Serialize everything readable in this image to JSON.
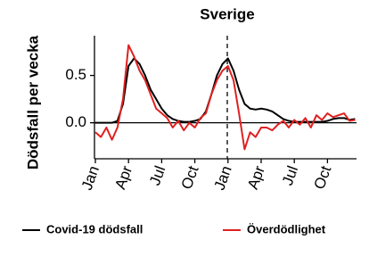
{
  "chart_data": {
    "type": "line",
    "title": "Sverige",
    "y_label": "Dödsfall per vecka",
    "categories": [
      "Jan",
      null,
      null,
      null,
      null,
      null,
      "Apr",
      null,
      null,
      null,
      null,
      null,
      "Jul",
      null,
      null,
      null,
      null,
      null,
      "Oct",
      null,
      null,
      null,
      null,
      null,
      "Jan",
      null,
      null,
      null,
      null,
      null,
      "Apr",
      null,
      null,
      null,
      null,
      null,
      "Jul",
      null,
      null,
      null,
      null,
      null,
      "Oct",
      null,
      null,
      null,
      null,
      null
    ],
    "series": [
      {
        "name": "Covid-19 dödsfall",
        "color": "#000000",
        "values": [
          0,
          0,
          0,
          0,
          0.02,
          0.2,
          0.6,
          0.68,
          0.62,
          0.5,
          0.35,
          0.25,
          0.15,
          0.08,
          0.04,
          0.02,
          0.01,
          0.01,
          0.02,
          0.04,
          0.12,
          0.3,
          0.5,
          0.62,
          0.68,
          0.55,
          0.35,
          0.2,
          0.15,
          0.14,
          0.15,
          0.14,
          0.12,
          0.08,
          0.04,
          0.02,
          0.01,
          0.01,
          0.01,
          0.01,
          0.01,
          0.01,
          0.02,
          0.04,
          0.05,
          0.05,
          0.03,
          0.04
        ]
      },
      {
        "name": "Överdödlighet",
        "color": "#e02020",
        "values": [
          -0.1,
          -0.15,
          -0.05,
          -0.18,
          -0.05,
          0.25,
          0.82,
          0.7,
          0.55,
          0.45,
          0.3,
          0.15,
          0.1,
          0.05,
          -0.05,
          0.02,
          -0.08,
          0.0,
          -0.05,
          0.05,
          0.1,
          0.3,
          0.45,
          0.55,
          0.6,
          0.45,
          0.1,
          -0.28,
          -0.1,
          -0.15,
          -0.05,
          -0.05,
          -0.08,
          -0.02,
          0.02,
          -0.05,
          0.03,
          -0.02,
          0.05,
          -0.05,
          0.08,
          0.03,
          0.1,
          0.06,
          0.08,
          0.1,
          0.02,
          0.03
        ]
      }
    ],
    "ylim": [
      -0.38,
      0.92
    ],
    "yticks": [
      {
        "value": 0,
        "label": "0.0"
      },
      {
        "value": 0.5,
        "label": "0.5"
      }
    ],
    "zero_line": true
  }
}
